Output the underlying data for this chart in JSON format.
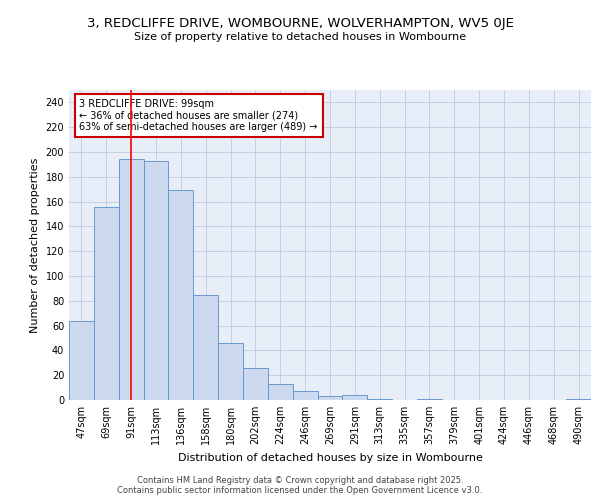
{
  "title": "3, REDCLIFFE DRIVE, WOMBOURNE, WOLVERHAMPTON, WV5 0JE",
  "subtitle": "Size of property relative to detached houses in Wombourne",
  "xlabel": "Distribution of detached houses by size in Wombourne",
  "ylabel": "Number of detached properties",
  "categories": [
    "47sqm",
    "69sqm",
    "91sqm",
    "113sqm",
    "136sqm",
    "158sqm",
    "180sqm",
    "202sqm",
    "224sqm",
    "246sqm",
    "269sqm",
    "291sqm",
    "313sqm",
    "335sqm",
    "357sqm",
    "379sqm",
    "401sqm",
    "424sqm",
    "446sqm",
    "468sqm",
    "490sqm"
  ],
  "bar_heights": [
    64,
    156,
    194,
    193,
    169,
    85,
    46,
    26,
    13,
    7,
    3,
    4,
    1,
    0,
    1,
    0,
    0,
    0,
    0,
    0,
    1
  ],
  "bar_color": "#cdd9ef",
  "bar_edge_color": "#6899ce",
  "red_line_x": 2,
  "annotation_text": "3 REDCLIFFE DRIVE: 99sqm\n← 36% of detached houses are smaller (274)\n63% of semi-detached houses are larger (489) →",
  "annotation_box_color": "#ffffff",
  "annotation_box_edge": "#cc0000",
  "ylim": [
    0,
    250
  ],
  "yticks": [
    0,
    20,
    40,
    60,
    80,
    100,
    120,
    140,
    160,
    180,
    200,
    220,
    240
  ],
  "background_color": "#e8eef8",
  "grid_color": "#c0c8dc",
  "footer": "Contains HM Land Registry data © Crown copyright and database right 2025.\nContains public sector information licensed under the Open Government Licence v3.0.",
  "title_fontsize": 9.5,
  "subtitle_fontsize": 8,
  "xlabel_fontsize": 8,
  "ylabel_fontsize": 8,
  "tick_fontsize": 7,
  "footer_fontsize": 6
}
